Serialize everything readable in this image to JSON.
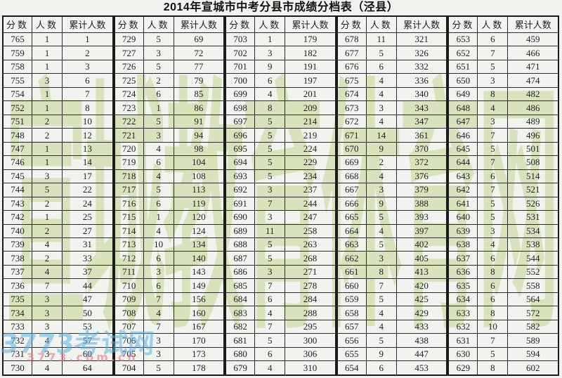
{
  "title": "2014年宣城市中考分县市成绩分档表（泾县）",
  "watermarks": {
    "green_text": "宣城教育体育网",
    "site": "3773考试网",
    "url": "3773.com.cn"
  },
  "colors": {
    "green_watermark": "rgba(200,218,156,0.62)",
    "site_watermark": "rgba(88,178,232,0.55)",
    "url_watermark": "rgba(236,118,134,0.62)",
    "grid_line": "#2b2b2b",
    "page_background": "#f2f2ee"
  },
  "table": {
    "headers": [
      "分数",
      "人数",
      "累计人数"
    ],
    "column_keys": [
      "score",
      "count",
      "cumulative"
    ],
    "groups": [
      [
        [
          765,
          1,
          1
        ],
        [
          759,
          1,
          2
        ],
        [
          758,
          1,
          3
        ],
        [
          755,
          3,
          6
        ],
        [
          754,
          1,
          7
        ],
        [
          752,
          1,
          8
        ],
        [
          751,
          2,
          10
        ],
        [
          748,
          2,
          12
        ],
        [
          747,
          1,
          13
        ],
        [
          746,
          1,
          14
        ],
        [
          745,
          3,
          17
        ],
        [
          744,
          5,
          22
        ],
        [
          743,
          2,
          24
        ],
        [
          742,
          1,
          25
        ],
        [
          740,
          2,
          27
        ],
        [
          739,
          4,
          31
        ],
        [
          738,
          2,
          33
        ],
        [
          737,
          4,
          37
        ],
        [
          736,
          7,
          44
        ],
        [
          735,
          3,
          47
        ],
        [
          734,
          3,
          50
        ],
        [
          733,
          3,
          53
        ],
        [
          732,
          4,
          57
        ],
        [
          731,
          3,
          60
        ],
        [
          730,
          4,
          64
        ]
      ],
      [
        [
          729,
          5,
          69
        ],
        [
          727,
          3,
          72
        ],
        [
          726,
          5,
          77
        ],
        [
          725,
          2,
          79
        ],
        [
          724,
          6,
          85
        ],
        [
          723,
          1,
          86
        ],
        [
          722,
          5,
          91
        ],
        [
          721,
          3,
          94
        ],
        [
          720,
          4,
          98
        ],
        [
          719,
          6,
          104
        ],
        [
          718,
          4,
          108
        ],
        [
          717,
          5,
          113
        ],
        [
          716,
          6,
          119
        ],
        [
          715,
          1,
          120
        ],
        [
          714,
          4,
          124
        ],
        [
          713,
          10,
          134
        ],
        [
          712,
          6,
          140
        ],
        [
          711,
          3,
          143
        ],
        [
          710,
          6,
          149
        ],
        [
          709,
          7,
          156
        ],
        [
          708,
          4,
          160
        ],
        [
          707,
          7,
          167
        ],
        [
          706,
          3,
          170
        ],
        [
          705,
          3,
          173
        ],
        [
          704,
          5,
          178
        ]
      ],
      [
        [
          703,
          1,
          179
        ],
        [
          702,
          3,
          182
        ],
        [
          701,
          9,
          191
        ],
        [
          700,
          6,
          197
        ],
        [
          699,
          4,
          201
        ],
        [
          698,
          8,
          209
        ],
        [
          697,
          5,
          214
        ],
        [
          696,
          5,
          219
        ],
        [
          695,
          5,
          224
        ],
        [
          694,
          5,
          229
        ],
        [
          693,
          5,
          234
        ],
        [
          692,
          3,
          237
        ],
        [
          691,
          7,
          244
        ],
        [
          690,
          3,
          247
        ],
        [
          689,
          11,
          258
        ],
        [
          688,
          5,
          263
        ],
        [
          687,
          5,
          268
        ],
        [
          686,
          3,
          271
        ],
        [
          685,
          7,
          278
        ],
        [
          684,
          6,
          284
        ],
        [
          683,
          4,
          288
        ],
        [
          682,
          7,
          295
        ],
        [
          681,
          5,
          300
        ],
        [
          680,
          6,
          306
        ],
        [
          679,
          4,
          310
        ]
      ],
      [
        [
          678,
          11,
          321
        ],
        [
          677,
          5,
          326
        ],
        [
          676,
          6,
          332
        ],
        [
          675,
          4,
          336
        ],
        [
          674,
          4,
          340
        ],
        [
          673,
          3,
          343
        ],
        [
          672,
          4,
          347
        ],
        [
          671,
          14,
          361
        ],
        [
          670,
          9,
          370
        ],
        [
          669,
          2,
          372
        ],
        [
          668,
          4,
          376
        ],
        [
          667,
          3,
          379
        ],
        [
          666,
          9,
          388
        ],
        [
          665,
          5,
          393
        ],
        [
          664,
          4,
          397
        ],
        [
          663,
          5,
          402
        ],
        [
          662,
          3,
          405
        ],
        [
          661,
          8,
          413
        ],
        [
          660,
          7,
          420
        ],
        [
          659,
          5,
          425
        ],
        [
          658,
          4,
          429
        ],
        [
          657,
          4,
          433
        ],
        [
          656,
          5,
          438
        ],
        [
          655,
          9,
          447
        ],
        [
          654,
          6,
          453
        ]
      ],
      [
        [
          653,
          6,
          459
        ],
        [
          652,
          7,
          466
        ],
        [
          651,
          5,
          471
        ],
        [
          650,
          3,
          474
        ],
        [
          649,
          8,
          482
        ],
        [
          648,
          4,
          486
        ],
        [
          647,
          3,
          489
        ],
        [
          646,
          7,
          496
        ],
        [
          645,
          5,
          501
        ],
        [
          644,
          7,
          508
        ],
        [
          643,
          6,
          514
        ],
        [
          642,
          7,
          521
        ],
        [
          641,
          5,
          526
        ],
        [
          640,
          5,
          531
        ],
        [
          639,
          3,
          534
        ],
        [
          638,
          4,
          538
        ],
        [
          637,
          6,
          544
        ],
        [
          636,
          8,
          552
        ],
        [
          635,
          6,
          558
        ],
        [
          634,
          6,
          564
        ],
        [
          633,
          8,
          572
        ],
        [
          632,
          10,
          582
        ],
        [
          631,
          7,
          589
        ],
        [
          630,
          5,
          594
        ],
        [
          629,
          8,
          602
        ]
      ]
    ]
  }
}
